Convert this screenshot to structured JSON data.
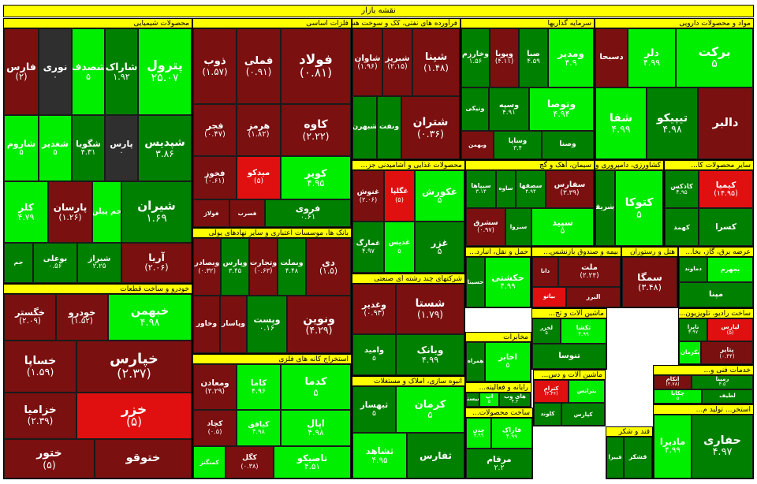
{
  "title": "نقشه بازار",
  "colors": {
    "up_strong": "#00ee00",
    "up": "#008000",
    "up_dark": "#1e6e1e",
    "down": "#7a1010",
    "down_strong": "#e01010",
    "neutral": "#2f2f2f",
    "header": "#ffff00"
  },
  "chart_data": {
    "type": "treemap",
    "title": "نقشه بازار",
    "sectors": [
      {
        "name": "محصولات شیمیایی",
        "tiles": [
          {
            "name": "پترول",
            "value": "۲۵.۰۷",
            "tone": "up_strong"
          },
          {
            "name": "شاراک",
            "value": "۱.۹۲",
            "tone": "up"
          },
          {
            "name": "شصدف",
            "value": "۵",
            "tone": "up_strong"
          },
          {
            "name": "نوری",
            "value": "۰",
            "tone": "neutral"
          },
          {
            "name": "فارس",
            "value": "(۲)",
            "tone": "down"
          },
          {
            "name": "شپدیس",
            "value": "۳.۸۶",
            "tone": "up"
          },
          {
            "name": "پارس",
            "value": "۰",
            "tone": "neutral"
          },
          {
            "name": "شگویا",
            "value": "۴.۳۱",
            "tone": "up"
          },
          {
            "name": "شغدیر",
            "value": "۵",
            "tone": "up_strong"
          },
          {
            "name": "شاروم",
            "value": "۵",
            "tone": "up_strong"
          },
          {
            "name": "شیران",
            "value": "۱.۶۹",
            "tone": "up"
          },
          {
            "name": "جم پیلن",
            "value": "",
            "tone": "up_strong"
          },
          {
            "name": "پارسان",
            "value": "(۱.۲۶)",
            "tone": "down"
          },
          {
            "name": "کلر",
            "value": "۴.۷۹",
            "tone": "up_strong"
          },
          {
            "name": "آریا",
            "value": "(۲.۰۶)",
            "tone": "down"
          },
          {
            "name": "شیراز",
            "value": "۲.۲۵",
            "tone": "up"
          },
          {
            "name": "بوعلی",
            "value": "۰.۵۶",
            "tone": "up"
          },
          {
            "name": "جم",
            "value": "",
            "tone": "up"
          }
        ]
      },
      {
        "name": "فلزات اساسی",
        "tiles": [
          {
            "name": "فولاد",
            "value": "(۰.۸۱)",
            "tone": "down"
          },
          {
            "name": "فملی",
            "value": "(۰.۹۱)",
            "tone": "down"
          },
          {
            "name": "ذوب",
            "value": "(۱.۵۷)",
            "tone": "down"
          },
          {
            "name": "کاوه",
            "value": "(۲.۲۲)",
            "tone": "down"
          },
          {
            "name": "هرمز",
            "value": "(۱.۸۲)",
            "tone": "down"
          },
          {
            "name": "فجر",
            "value": "(۰.۴۷)",
            "tone": "down"
          },
          {
            "name": "کویر",
            "value": "۴.۹۵",
            "tone": "up_strong"
          },
          {
            "name": "میدکو",
            "value": "(۵)",
            "tone": "down_strong"
          },
          {
            "name": "فخوز",
            "value": "(۰.۶۱)",
            "tone": "down"
          },
          {
            "name": "فروی",
            "value": "۰.۶۱",
            "tone": "up"
          },
          {
            "name": "فسرب",
            "value": "",
            "tone": "down"
          },
          {
            "name": "فولاژ",
            "value": "",
            "tone": "down"
          }
        ]
      },
      {
        "name": "فرآورده های نفتی، کک و سوخت هسته ای",
        "tiles": [
          {
            "name": "شپنا",
            "value": "(۱.۴۸)",
            "tone": "down"
          },
          {
            "name": "شبریز",
            "value": "(۲.۱۵)",
            "tone": "down"
          },
          {
            "name": "شاوان",
            "value": "(۱.۹۶)",
            "tone": "down"
          },
          {
            "name": "شتران",
            "value": "(۰.۳۶)",
            "tone": "down"
          },
          {
            "name": "ونفت",
            "value": "",
            "tone": "up"
          },
          {
            "name": "شبهرن",
            "value": "",
            "tone": "up"
          }
        ]
      },
      {
        "name": "سرمایه گذاریها",
        "tiles": [
          {
            "name": "ومدیر",
            "value": "۴.۹",
            "tone": "up_strong"
          },
          {
            "name": "صبا",
            "value": "۴.۵۹",
            "tone": "up"
          },
          {
            "name": "وپویا",
            "value": "(۴.۱۱)",
            "tone": "down"
          },
          {
            "name": "وخارزم",
            "value": "۱.۵۶",
            "tone": "up"
          },
          {
            "name": "وتوصا",
            "value": "۴.۹۴",
            "tone": "up_strong"
          },
          {
            "name": "وسپه",
            "value": "۴.۹۱",
            "tone": "up"
          },
          {
            "name": "ونیکی",
            "value": "",
            "tone": "up"
          },
          {
            "name": "وصنا",
            "value": "",
            "tone": "up"
          },
          {
            "name": "وساپا",
            "value": "۳.۴",
            "tone": "up"
          },
          {
            "name": "وبهمن",
            "value": "",
            "tone": "down"
          }
        ]
      },
      {
        "name": "مواد و محصولات دارویی",
        "tiles": [
          {
            "name": "برکت",
            "value": "۵",
            "tone": "up_strong"
          },
          {
            "name": "دلر",
            "value": "۴.۹۹",
            "tone": "up_strong"
          },
          {
            "name": "دسبحا",
            "value": "",
            "tone": "down"
          },
          {
            "name": "دالبر",
            "value": "",
            "tone": "down"
          },
          {
            "name": "تیپیکو",
            "value": "۴.۹۸",
            "tone": "up"
          },
          {
            "name": "شفا",
            "value": "۴.۹۹",
            "tone": "up_strong"
          }
        ]
      },
      {
        "name": "خودرو و ساخت قطعات",
        "tiles": [
          {
            "name": "خبهمن",
            "value": "۴.۹۸",
            "tone": "up_strong"
          },
          {
            "name": "خودرو",
            "value": "(۱.۵۲)",
            "tone": "down"
          },
          {
            "name": "خگستر",
            "value": "(۲.۰۹)",
            "tone": "down"
          },
          {
            "name": "خپارس",
            "value": "(۲.۳۷)",
            "tone": "down"
          },
          {
            "name": "خساپا",
            "value": "(۱.۵۹)",
            "tone": "down"
          },
          {
            "name": "خزر",
            "value": "(۵)",
            "tone": "down_strong"
          },
          {
            "name": "خزامیا",
            "value": "(۲.۳۹)",
            "tone": "down"
          },
          {
            "name": "ختوقو",
            "value": "",
            "tone": "down"
          },
          {
            "name": "ختور",
            "value": "(۵)",
            "tone": "down"
          }
        ]
      },
      {
        "name": "بانک ها، موسسات اعتباری و سایر نهادهای پولی",
        "tiles": [
          {
            "name": "دی",
            "value": "(۱.۵)",
            "tone": "down"
          },
          {
            "name": "وبملت",
            "value": "۴.۴۸",
            "tone": "up"
          },
          {
            "name": "وتجارت",
            "value": "(۰.۶۳)",
            "tone": "down"
          },
          {
            "name": "وپارس",
            "value": "۳.۴۵",
            "tone": "up"
          },
          {
            "name": "وبصادر",
            "value": "(۰.۳۲)",
            "tone": "down"
          },
          {
            "name": "ونوین",
            "value": "(۴.۲۹)",
            "tone": "down"
          },
          {
            "name": "وپست",
            "value": "۰.۱۶",
            "tone": "up"
          },
          {
            "name": "وپاسار",
            "value": "",
            "tone": "down"
          },
          {
            "name": "وخاور",
            "value": "",
            "tone": "down"
          }
        ]
      },
      {
        "name": "استخراج کانه های فلزی",
        "tiles": [
          {
            "name": "کدما",
            "value": "۵",
            "tone": "up_strong"
          },
          {
            "name": "کاما",
            "value": "۴.۹۶",
            "tone": "up_strong"
          },
          {
            "name": "ومعادن",
            "value": "(۲.۲۹)",
            "tone": "down"
          },
          {
            "name": "اپال",
            "value": "۴.۹۸",
            "tone": "up_strong"
          },
          {
            "name": "کیافق",
            "value": "۴.۹۸",
            "tone": "up_strong"
          },
          {
            "name": "کچاد",
            "value": "(۰.۵)",
            "tone": "down"
          },
          {
            "name": "تاصیکو",
            "value": "۴.۵۱",
            "tone": "up_strong"
          },
          {
            "name": "کگل",
            "value": "(۰.۳۸)",
            "tone": "down"
          },
          {
            "name": "کمنگنز",
            "value": "",
            "tone": "up_strong"
          }
        ]
      },
      {
        "name": "محصولات غذایی و آشامیدنی جز...",
        "tiles": [
          {
            "name": "غکورش",
            "value": "۵",
            "tone": "up_strong"
          },
          {
            "name": "غگلپا",
            "value": "(۵)",
            "tone": "down_strong"
          },
          {
            "name": "غنوش",
            "value": "(۲.۰۶)",
            "tone": "down"
          },
          {
            "name": "غزر",
            "value": "۵",
            "tone": "up"
          },
          {
            "name": "غدیس",
            "value": "۵",
            "tone": "up_strong"
          },
          {
            "name": "غمارگ",
            "value": "۴.۹۷",
            "tone": "up"
          }
        ]
      },
      {
        "name": "سیمان، آهک و گچ",
        "tiles": [
          {
            "name": "سفارس",
            "value": "(۳.۳۹)",
            "tone": "down"
          },
          {
            "name": "سصفها",
            "value": "۴.۹۴",
            "tone": "up"
          },
          {
            "name": "ساوه",
            "value": "",
            "tone": "up"
          },
          {
            "name": "سیپاها",
            "value": "۳.۱۴",
            "tone": "up"
          },
          {
            "name": "سپید",
            "value": "۵",
            "tone": "up_strong"
          },
          {
            "name": "سبزوا",
            "value": "",
            "tone": "up"
          },
          {
            "name": "سشرق",
            "value": "(۰.۹۷)",
            "tone": "down"
          }
        ]
      },
      {
        "name": "کشاورزی، دامپروری و خد...",
        "tiles": [
          {
            "name": "کتوکا",
            "value": "۵",
            "tone": "up_strong"
          },
          {
            "name": "زشریف",
            "value": "",
            "tone": "up"
          }
        ]
      },
      {
        "name": "سایر محصولات کا...",
        "tiles": [
          {
            "name": "کیمیا",
            "value": "(۱۴.۹۵)",
            "tone": "down_strong"
          },
          {
            "name": "کاذکس",
            "value": "۴.۹۵",
            "tone": "up"
          },
          {
            "name": "کسرا",
            "value": "",
            "tone": "up"
          },
          {
            "name": "کهمد",
            "value": "",
            "tone": "up"
          }
        ]
      },
      {
        "name": "شرکتهای چند رشته ای صنعتی",
        "tiles": [
          {
            "name": "شستا",
            "value": "(۱.۷۹)",
            "tone": "down"
          },
          {
            "name": "وغدیر",
            "value": "(۰.۹۳)",
            "tone": "down"
          },
          {
            "name": "وبانک",
            "value": "۴.۹۹",
            "tone": "up"
          },
          {
            "name": "وامید",
            "value": "۵",
            "tone": "up"
          }
        ]
      },
      {
        "name": "انبوه سازی، املاک و مستغلات",
        "tiles": [
          {
            "name": "کرمان",
            "value": "۵",
            "tone": "up_strong"
          },
          {
            "name": "ثبهساز",
            "value": "۵",
            "tone": "up"
          },
          {
            "name": "ثفارس",
            "value": "",
            "tone": "up"
          },
          {
            "name": "ثشاهد",
            "value": "۴.۹۵",
            "tone": "up_strong"
          }
        ]
      },
      {
        "name": "حمل و نقل، انبارد...",
        "tiles": [
          {
            "name": "حکشتی",
            "value": "۴.۹۹",
            "tone": "up_strong"
          },
          {
            "name": "حسینا",
            "value": "",
            "tone": "up"
          }
        ]
      },
      {
        "name": "بیمه و صندوق بازنشس...",
        "tiles": [
          {
            "name": "ملت",
            "value": "(۲.۲۴)",
            "tone": "down"
          },
          {
            "name": "دانا",
            "value": "",
            "tone": "down"
          },
          {
            "name": "البرز",
            "value": "",
            "tone": "down"
          },
          {
            "name": "بیاتو",
            "value": "",
            "tone": "down_strong"
          }
        ]
      },
      {
        "name": "هتل و رستوران",
        "tiles": [
          {
            "name": "سمگا",
            "value": "(۳.۴۸)",
            "tone": "down"
          }
        ]
      },
      {
        "name": "عرضه برق، گاز، بخا...",
        "tiles": [
          {
            "name": "بجهرم",
            "value": "",
            "tone": "up_strong"
          },
          {
            "name": "دماوند",
            "value": "",
            "tone": "up"
          },
          {
            "name": "مپنا",
            "value": "",
            "tone": "up"
          }
        ]
      },
      {
        "name": "مخابرات",
        "tiles": [
          {
            "name": "اخابر",
            "value": "۵",
            "tone": "up_strong"
          },
          {
            "name": "همراه",
            "value": "",
            "tone": "up"
          }
        ]
      },
      {
        "name": "ساخت رادیو، تلویزیون...",
        "tiles": [
          {
            "name": "لپارس",
            "value": "(۵)",
            "tone": "down_strong"
          },
          {
            "name": "تاپرا",
            "value": "۴.۹۷",
            "tone": "up"
          },
          {
            "name": "پتایر",
            "value": "(۰.۴۴)",
            "tone": "down"
          },
          {
            "name": "پکرمان",
            "value": "",
            "tone": "up_strong"
          }
        ]
      },
      {
        "name": "ماشین آلات و تج...",
        "tiles": [
          {
            "name": "تکشا",
            "value": "۴.۹۹",
            "tone": "up_strong"
          },
          {
            "name": "لخزر",
            "value": "۵",
            "tone": "up"
          },
          {
            "name": "تنوسا",
            "value": "",
            "tone": "up"
          }
        ]
      },
      {
        "name": "رایانه و فعالیته...",
        "tiles": [
          {
            "name": "های وب",
            "value": "۴.۲",
            "tone": "up"
          },
          {
            "name": "آپ",
            "value": "۵",
            "tone": "up_strong"
          },
          {
            "name": "سیستم",
            "value": "",
            "tone": "up"
          }
        ]
      },
      {
        "name": "ساخت محصولات...",
        "tiles": [
          {
            "name": "فاراک",
            "value": "۴.۹۹",
            "tone": "up_strong"
          },
          {
            "name": "چدن",
            "value": "۴.۹۹",
            "tone": "up_strong"
          },
          {
            "name": "مرقام",
            "value": "۲.۲",
            "tone": "up"
          }
        ]
      },
      {
        "name": "ماشین آلات و دس...",
        "tiles": [
          {
            "name": "بترانس",
            "value": "",
            "tone": "up_strong"
          },
          {
            "name": "کترام",
            "value": "(۴.۳۶)",
            "tone": "down_strong"
          },
          {
            "name": "کپارس",
            "value": "",
            "tone": "up"
          },
          {
            "name": "کلوند",
            "value": "",
            "tone": "up"
          }
        ]
      },
      {
        "name": "قند و شکر",
        "tiles": [
          {
            "name": "قشکر",
            "value": "",
            "tone": "up"
          },
          {
            "name": "قپیرا",
            "value": "",
            "tone": "up"
          }
        ]
      },
      {
        "name": "خدمات فنی و...",
        "tiles": [
          {
            "name": "رمپنا",
            "value": "۴.۵",
            "tone": "up"
          },
          {
            "name": "اتکام",
            "value": "(۲.۷۸)",
            "tone": "down"
          },
          {
            "name": "لطیف",
            "value": "",
            "tone": "up"
          },
          {
            "name": "چکاپا",
            "value": "۵",
            "tone": "up_strong"
          }
        ]
      },
      {
        "name": "استخر... تولید م...",
        "tiles": [
          {
            "name": "حفاری",
            "value": "۴.۹۷",
            "tone": "up"
          },
          {
            "name": "مادیرا",
            "value": "۴.۹۹",
            "tone": "up_strong"
          }
        ]
      }
    ]
  }
}
